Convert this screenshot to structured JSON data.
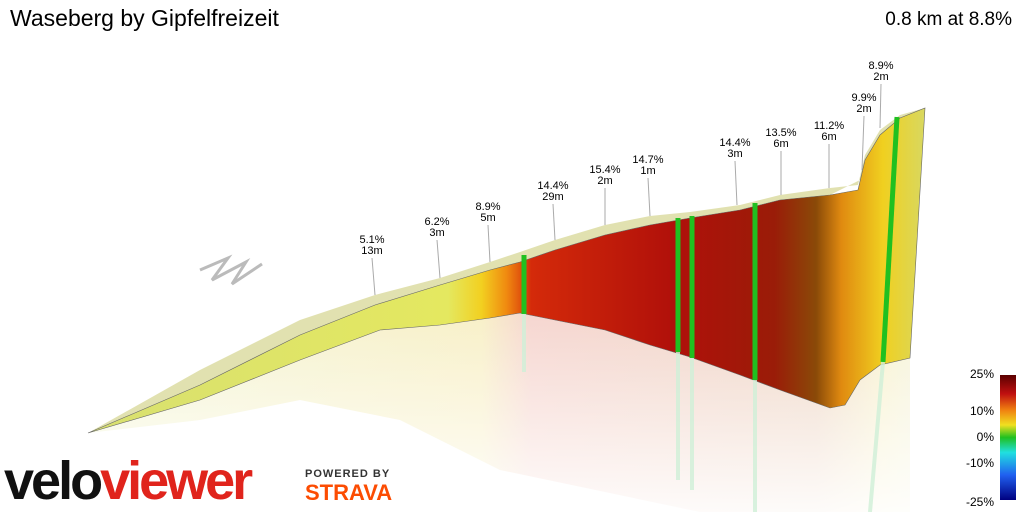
{
  "header": {
    "title": "Waseberg by Gipfelfreizeit",
    "stats": "0.8 km at 8.8%"
  },
  "annotations": [
    {
      "grade": "5.1%",
      "gain": "13m"
    },
    {
      "grade": "6.2%",
      "gain": "3m"
    },
    {
      "grade": "8.9%",
      "gain": "5m"
    },
    {
      "grade": "14.4%",
      "gain": "29m"
    },
    {
      "grade": "15.4%",
      "gain": "2m"
    },
    {
      "grade": "14.7%",
      "gain": "1m"
    },
    {
      "grade": "14.4%",
      "gain": "3m"
    },
    {
      "grade": "13.5%",
      "gain": "6m"
    },
    {
      "grade": "11.2%",
      "gain": "6m"
    },
    {
      "grade": "9.9%",
      "gain": "2m"
    },
    {
      "grade": "8.9%",
      "gain": "2m"
    }
  ],
  "legend": {
    "labels": [
      "25%",
      "10%",
      "0%",
      "-10%",
      "-25%"
    ]
  },
  "logo": {
    "part1": "velo",
    "part2": "viewer",
    "powered": "POWERED BY",
    "strava": "STRAVA"
  }
}
